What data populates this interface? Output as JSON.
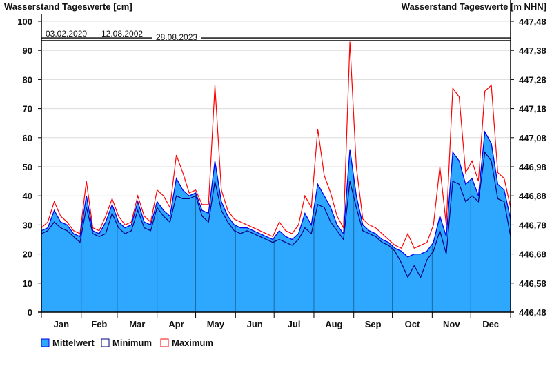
{
  "chart_data": {
    "type": "area",
    "title_left": "Wasserstand Tageswerte [cm]",
    "title_right": "Wasserstand Tageswerte [m NHN]",
    "ylim": [
      0,
      100
    ],
    "y_ticks": [
      "0",
      "10",
      "20",
      "30",
      "40",
      "50",
      "60",
      "70",
      "80",
      "90",
      "100"
    ],
    "y2_ticks": [
      "446,48",
      "446,58",
      "446,68",
      "446,78",
      "446,88",
      "446,98",
      "447,08",
      "447,18",
      "447,28",
      "447,38",
      "447,48"
    ],
    "months": [
      "Jan",
      "Feb",
      "Mar",
      "Apr",
      "May",
      "Jun",
      "Jul",
      "Aug",
      "Sep",
      "Oct",
      "Nov",
      "Dec"
    ],
    "month_start_days": [
      0,
      31,
      59,
      90,
      120,
      151,
      181,
      212,
      243,
      273,
      304,
      334
    ],
    "days_in_year": 365,
    "sample_interval_days": 5,
    "grid": true,
    "reference_lines": [
      {
        "value": 94.3,
        "labels": [
          "03.02.2020",
          "12.08.2002",
          "28.08.2023"
        ]
      },
      {
        "value": 93.4
      }
    ],
    "series": [
      {
        "name": "Mittelwert",
        "color": "#2EA8FF",
        "line": "#0000EE",
        "values": [
          28,
          29,
          35,
          31,
          30,
          27,
          26,
          40,
          28,
          27,
          31,
          37,
          31,
          29,
          30,
          38,
          31,
          30,
          38,
          35,
          33,
          46,
          42,
          40,
          41,
          35,
          34,
          52,
          38,
          33,
          30,
          29,
          29,
          28,
          27,
          26,
          25,
          28,
          26,
          25,
          27,
          34,
          30,
          44,
          40,
          36,
          30,
          27,
          56,
          40,
          30,
          28,
          27,
          25,
          24,
          22,
          21,
          19,
          20,
          20,
          21,
          24,
          33,
          26,
          55,
          52,
          44,
          46,
          40,
          62,
          58,
          44,
          42,
          32
        ]
      },
      {
        "name": "Minimum",
        "color": "#000080",
        "values": [
          27,
          28,
          31,
          29,
          28,
          26,
          24,
          36,
          27,
          26,
          27,
          34,
          29,
          27,
          28,
          35,
          29,
          28,
          36,
          33,
          31,
          40,
          39,
          39,
          40,
          33,
          31,
          45,
          35,
          31,
          28,
          27,
          28,
          27,
          26,
          25,
          24,
          25,
          24,
          23,
          25,
          29,
          27,
          37,
          36,
          31,
          28,
          25,
          45,
          36,
          28,
          27,
          26,
          24,
          23,
          21,
          17,
          12,
          16,
          12,
          18,
          21,
          28,
          20,
          45,
          44,
          38,
          40,
          38,
          55,
          52,
          39,
          38,
          26
        ]
      },
      {
        "name": "Maximum",
        "color": "#FF0000",
        "values": [
          29,
          31,
          38,
          33,
          31,
          28,
          27,
          45,
          29,
          28,
          33,
          39,
          33,
          30,
          31,
          40,
          33,
          31,
          42,
          40,
          36,
          54,
          48,
          41,
          42,
          37,
          37,
          78,
          42,
          35,
          32,
          31,
          30,
          29,
          28,
          27,
          26,
          31,
          28,
          27,
          30,
          40,
          36,
          63,
          47,
          41,
          33,
          29,
          93,
          50,
          32,
          30,
          29,
          27,
          25,
          23,
          22,
          27,
          22,
          23,
          24,
          30,
          50,
          30,
          77,
          74,
          48,
          52,
          45,
          76,
          78,
          48,
          46,
          36
        ]
      }
    ],
    "legend": [
      "Mittelwert",
      "Minimum",
      "Maximum"
    ],
    "legend_position": "bottom-left"
  }
}
